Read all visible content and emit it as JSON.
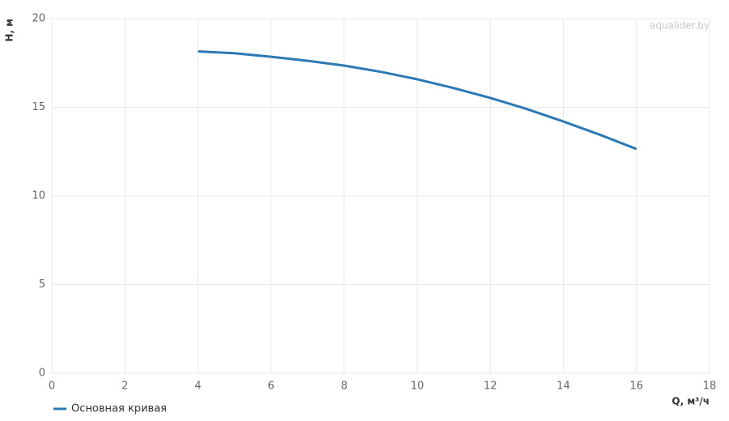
{
  "chart_data": {
    "type": "line",
    "watermark": "aqualider.by",
    "y_label": "H, м",
    "x_label": "Q, м³/ч",
    "x": [
      4,
      5,
      6,
      7,
      8,
      9,
      10,
      11,
      12,
      13,
      14,
      15,
      16
    ],
    "series": [
      {
        "name": "Основная кривая",
        "color": "#2b79b5",
        "values": [
          18.15,
          18.05,
          17.85,
          17.62,
          17.35,
          17.0,
          16.58,
          16.08,
          15.53,
          14.9,
          14.2,
          13.45,
          12.65
        ]
      }
    ],
    "xlim": [
      0,
      18
    ],
    "xticks": [
      0,
      2,
      4,
      6,
      8,
      10,
      12,
      14,
      16,
      18
    ],
    "ylim": [
      0,
      20
    ],
    "yticks": [
      0,
      5,
      10,
      15,
      20
    ],
    "grid": true,
    "legend": "bottom-left"
  }
}
